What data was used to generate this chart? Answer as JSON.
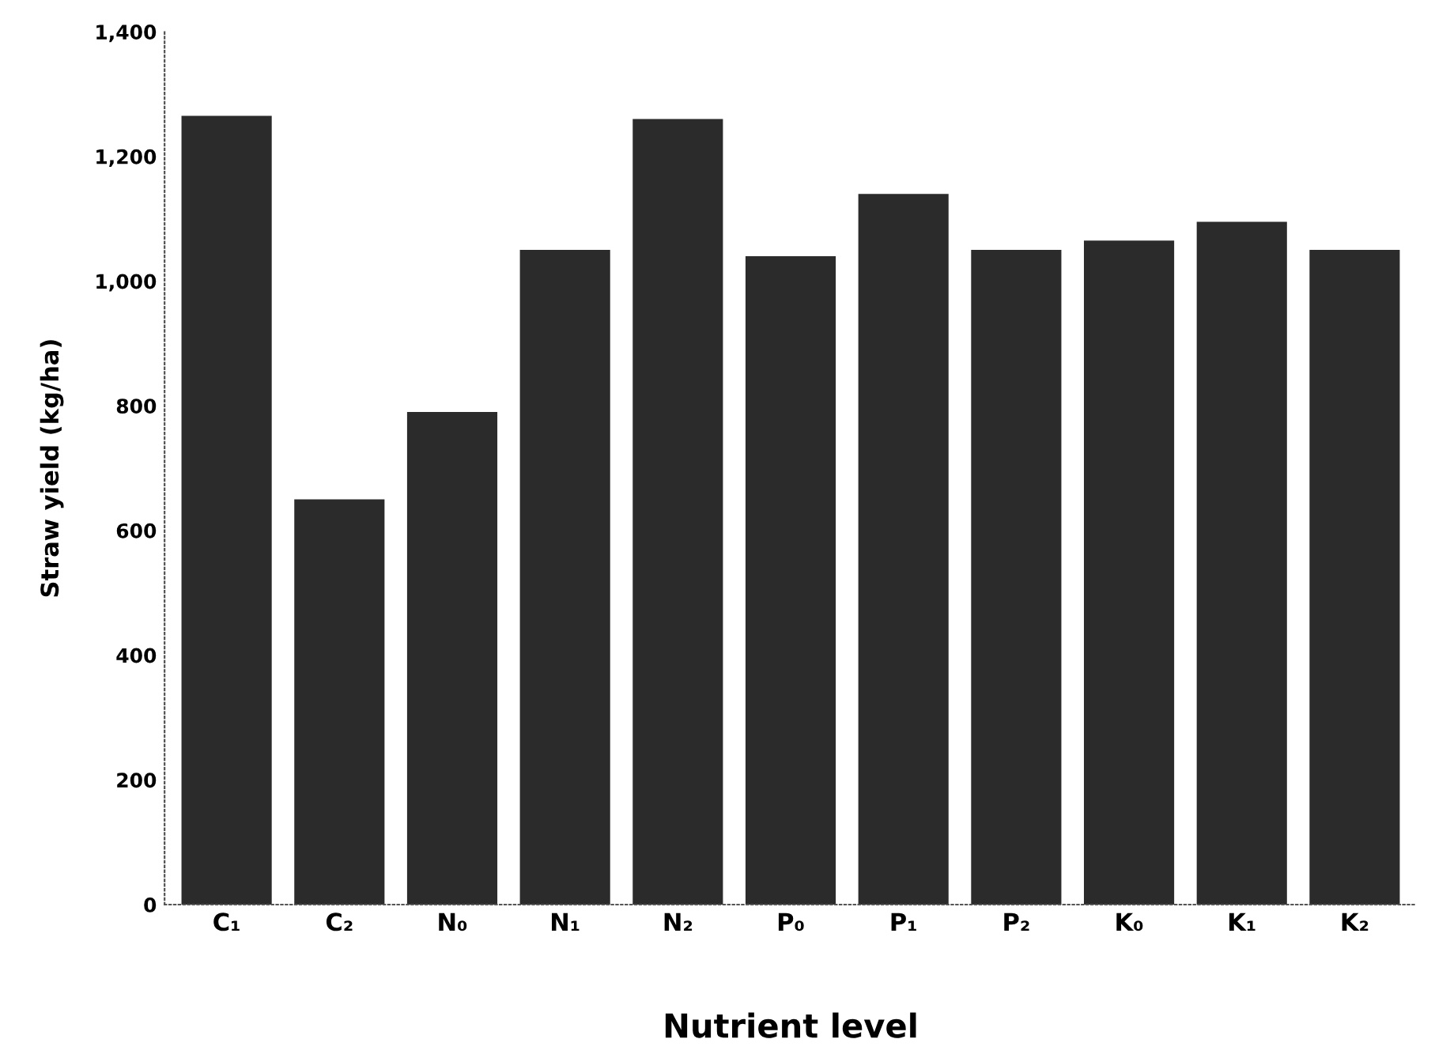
{
  "chart_data": {
    "type": "bar",
    "xlabel": "Nutrient level",
    "ylabel": "Straw yield (kg/ha)",
    "categories": [
      "C₁",
      "C₂",
      "N₀",
      "N₁",
      "N₂",
      "P₀",
      "P₁",
      "P₂",
      "K₀",
      "K₁",
      "K₂"
    ],
    "values": [
      1265,
      650,
      790,
      1050,
      1260,
      1040,
      1140,
      1050,
      1065,
      1095,
      1050
    ],
    "color": "#2b2b2b",
    "ylim": [
      0,
      1400
    ],
    "yticks": [
      {
        "value": 0,
        "label": "0"
      },
      {
        "value": 200,
        "label": "200"
      },
      {
        "value": 400,
        "label": "400"
      },
      {
        "value": 600,
        "label": "600"
      },
      {
        "value": 800,
        "label": "800"
      },
      {
        "value": 1000,
        "label": "1,000"
      },
      {
        "value": 1200,
        "label": "1,200"
      },
      {
        "value": 1400,
        "label": "1,400"
      }
    ],
    "grid": false
  }
}
